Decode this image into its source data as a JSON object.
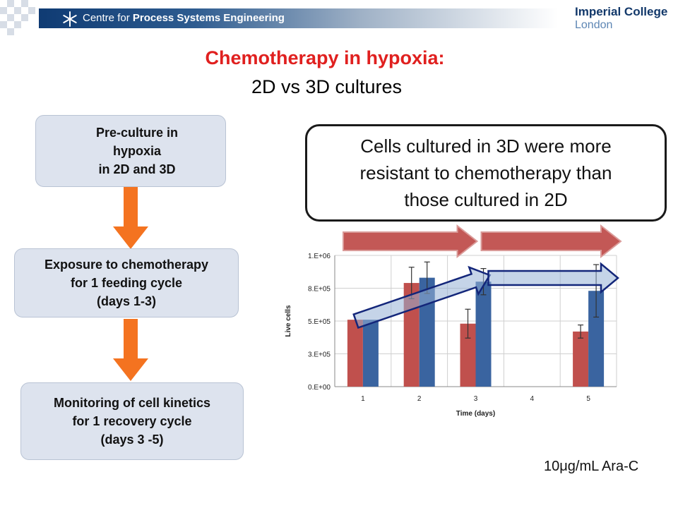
{
  "header": {
    "banner_prefix": "Centre for ",
    "banner_bold": "Process Systems Engineering",
    "logo_line1": "Imperial College",
    "logo_line2": "London",
    "colors": {
      "banner_dark": "#0f3b73",
      "logo": "#12386a"
    }
  },
  "slide": {
    "title": "Chemotherapy in hypoxia:",
    "subtitle": "2D vs 3D cultures",
    "title_color": "#e0201f"
  },
  "flow": {
    "steps": [
      {
        "text": "Pre-culture in\nhypoxia\nin 2D and 3D"
      },
      {
        "text": "Exposure to chemotherapy\nfor 1 feeding cycle\n(days 1-3)"
      },
      {
        "text": "Monitoring of cell kinetics\nfor 1 recovery cycle\n(days 3 -5)"
      }
    ],
    "arrow_color": "#f47320"
  },
  "callout": {
    "text": "Cells cultured in 3D were more\nresistant to chemotherapy than\nthose cultured in 2D"
  },
  "chart_data": {
    "type": "bar",
    "categories": [
      "1",
      "2",
      "3",
      "4",
      "5"
    ],
    "series": [
      {
        "color": "#c0504d",
        "values": [
          510000,
          790000,
          480000,
          null,
          420000
        ],
        "errors": [
          0,
          120000,
          110000,
          null,
          50000
        ]
      },
      {
        "color": "#3a64a0",
        "values": [
          510000,
          830000,
          800000,
          null,
          730000
        ],
        "errors": [
          0,
          120000,
          100000,
          null,
          200000
        ]
      }
    ],
    "tick_labels_y": [
      "0.E+00",
      "3.E+05",
      "5.E+05",
      "8.E+05",
      "1.E+06"
    ],
    "tick_values_y": [
      0,
      250000,
      500000,
      750000,
      1000000
    ],
    "ylim": [
      0,
      1000000
    ],
    "ylabel": "Live cells",
    "xlabel": "Time (days)",
    "grid": true,
    "overlay_arrows": [
      {
        "kind": "red",
        "from": "1",
        "to": "3"
      },
      {
        "kind": "red",
        "from": "3",
        "to": "5"
      },
      {
        "kind": "blue",
        "from": "1",
        "to": "3"
      },
      {
        "kind": "blue",
        "from": "3",
        "to": "5"
      }
    ]
  },
  "footnote": "10μg/mL Ara-C"
}
